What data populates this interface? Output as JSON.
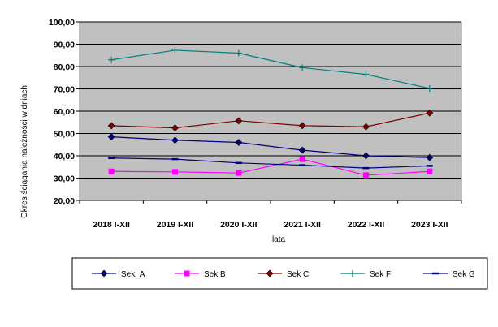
{
  "chart_data": {
    "type": "line",
    "categories": [
      "2018 I-XII",
      "2019 I-XII",
      "2020 I-XII",
      "2021 I-XII",
      "2022 I-XII",
      "2023 I-XII"
    ],
    "xlabel": "lata",
    "ylabel": "Okres ściągania należności w dniach",
    "ylim": [
      20,
      100
    ],
    "yticks": [
      "20,00",
      "30,00",
      "40,00",
      "50,00",
      "60,00",
      "70,00",
      "80,00",
      "90,00",
      "100,00"
    ],
    "grid": true,
    "legend_position": "bottom",
    "plot_background": "#c0c0c0",
    "series": [
      {
        "name": "Sek_A",
        "color": "#000080",
        "marker": "diamond",
        "values": [
          48.5,
          47.0,
          46.0,
          42.5,
          40.0,
          39.2
        ]
      },
      {
        "name": "Sek B",
        "color": "#ff00ff",
        "marker": "square",
        "values": [
          33.0,
          32.8,
          32.3,
          38.5,
          31.3,
          33.0
        ]
      },
      {
        "name": "Sek C",
        "color": "#800000",
        "marker": "diamond",
        "values": [
          53.5,
          52.5,
          55.7,
          53.5,
          53.0,
          59.2
        ]
      },
      {
        "name": "Sek F",
        "color": "#008080",
        "marker": "plus",
        "values": [
          83.0,
          87.3,
          86.0,
          79.5,
          76.5,
          70.2
        ]
      },
      {
        "name": "Sek G",
        "color": "#000080",
        "marker": "dash",
        "values": [
          39.0,
          38.5,
          36.8,
          35.8,
          34.5,
          35.5
        ]
      }
    ]
  }
}
